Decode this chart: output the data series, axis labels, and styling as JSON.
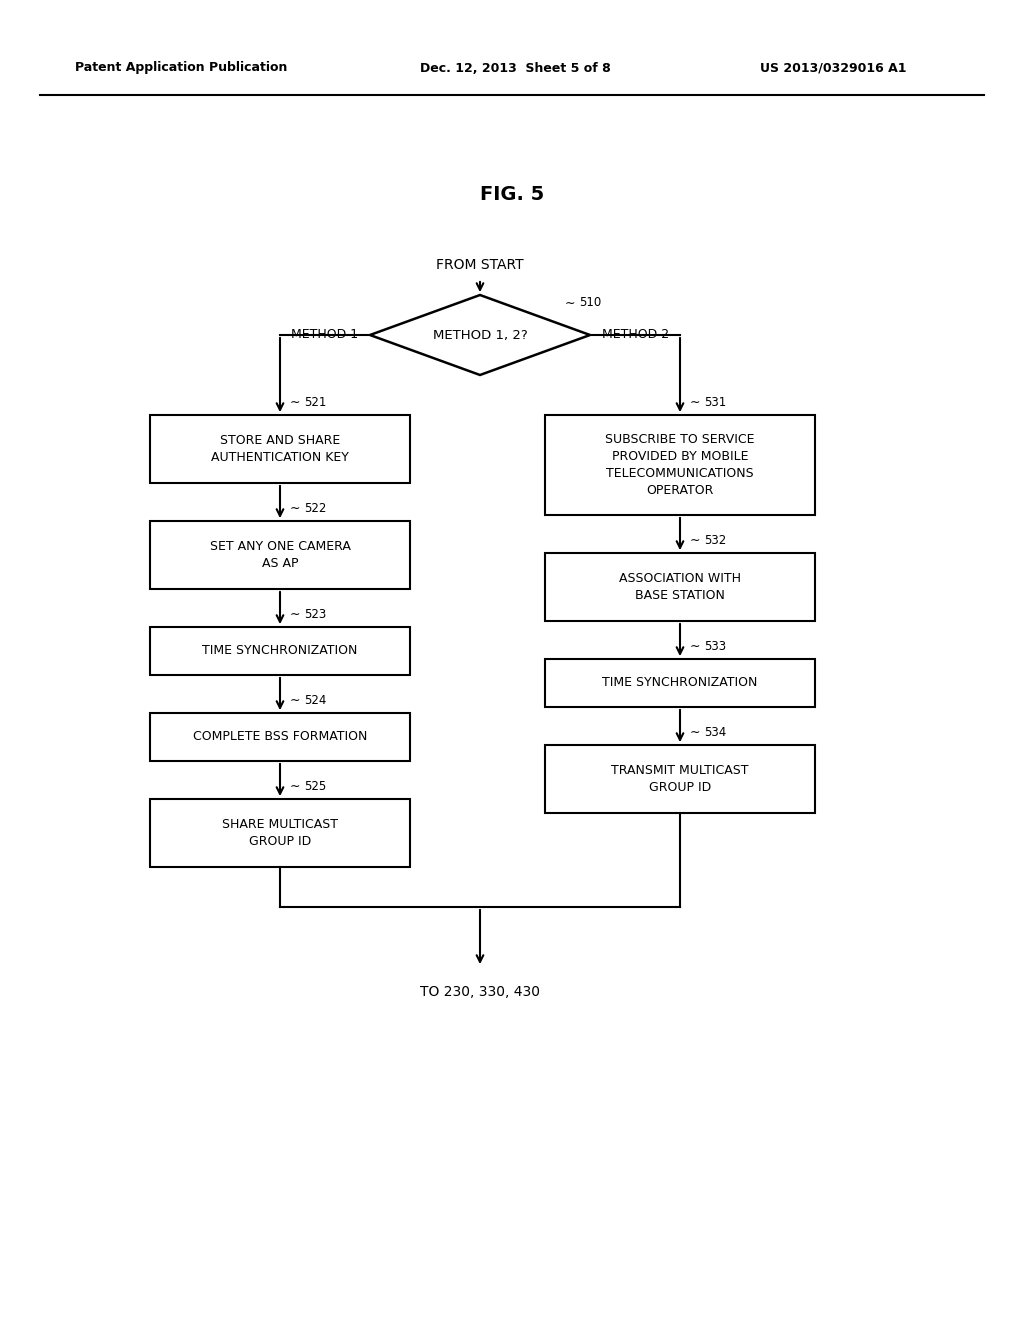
{
  "title": "FIG. 5",
  "header_left": "Patent Application Publication",
  "header_mid": "Dec. 12, 2013  Sheet 5 of 8",
  "header_right": "US 2013/0329016 A1",
  "bg_color": "#ffffff",
  "text_color": "#000000",
  "from_start_text": "FROM START",
  "diamond_text": "METHOD 1, 2?",
  "diamond_label": "510",
  "method1_label": "METHOD 1",
  "method2_label": "METHOD 2",
  "end_text": "TO 230, 330, 430"
}
